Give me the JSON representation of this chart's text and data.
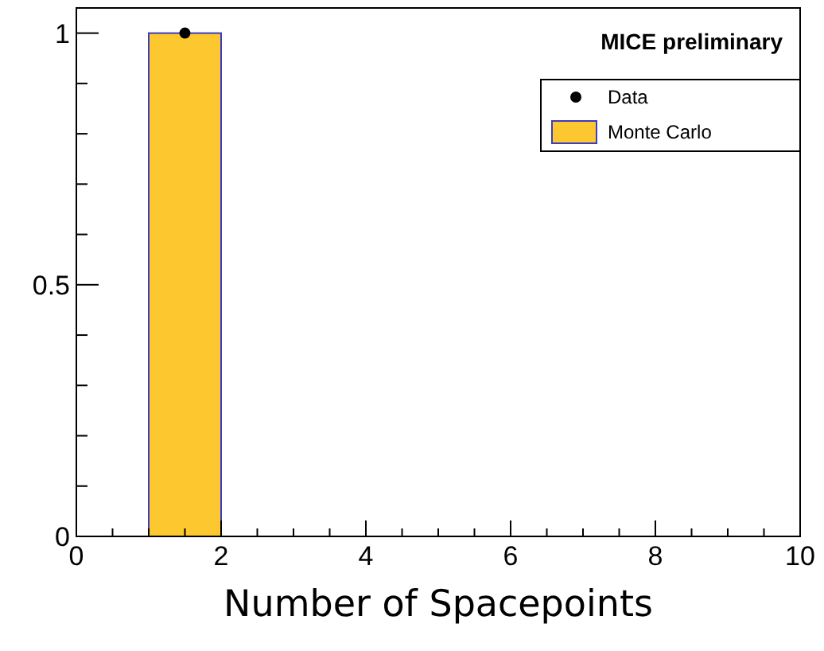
{
  "chart_data": {
    "type": "histogram",
    "xlabel": "Number of Spacepoints",
    "annotations": [
      "MICE preliminary"
    ],
    "bins": [
      0,
      1,
      2,
      3,
      4,
      5,
      6,
      7,
      8,
      9,
      10
    ],
    "series": [
      {
        "name": "Data",
        "type": "scatter",
        "color": "#000000",
        "x": [
          1.5
        ],
        "values": [
          1
        ]
      },
      {
        "name": "Monte Carlo",
        "color": "#fdc82f",
        "values": [
          0,
          1,
          0,
          0,
          0,
          0,
          0,
          0,
          0,
          0
        ]
      }
    ],
    "xlim": [
      0,
      10
    ],
    "xticks": [
      0,
      {
        "value": 0.5,
        "label": null
      },
      {
        "value": 1,
        "label": null
      },
      {
        "value": 1.5,
        "label": null
      },
      2,
      {
        "value": 2.5,
        "label": null
      },
      {
        "value": 3,
        "label": null
      },
      {
        "value": 3.5,
        "label": null
      },
      4,
      {
        "value": 4.5,
        "label": null
      },
      {
        "value": 5,
        "label": null
      },
      {
        "value": 5.5,
        "label": null
      },
      6,
      {
        "value": 6.5,
        "label": null
      },
      {
        "value": 7,
        "label": null
      },
      {
        "value": 7.5,
        "label": null
      },
      8,
      {
        "value": 8.5,
        "label": null
      },
      {
        "value": 9,
        "label": null
      },
      {
        "value": 9.5,
        "label": null
      },
      10
    ],
    "ylim": [
      0,
      1.05
    ],
    "yticks": [
      0,
      {
        "value": 0.1,
        "label": null
      },
      {
        "value": 0.2,
        "label": null
      },
      {
        "value": 0.3,
        "label": null
      },
      {
        "value": 0.4,
        "label": null
      },
      0.5,
      {
        "value": 0.6,
        "label": null
      },
      {
        "value": 0.7,
        "label": null
      },
      {
        "value": 0.8,
        "label": null
      },
      {
        "value": 0.9,
        "label": null
      },
      1
    ],
    "legend": "top right",
    "marker": "circle",
    "grid": false
  }
}
